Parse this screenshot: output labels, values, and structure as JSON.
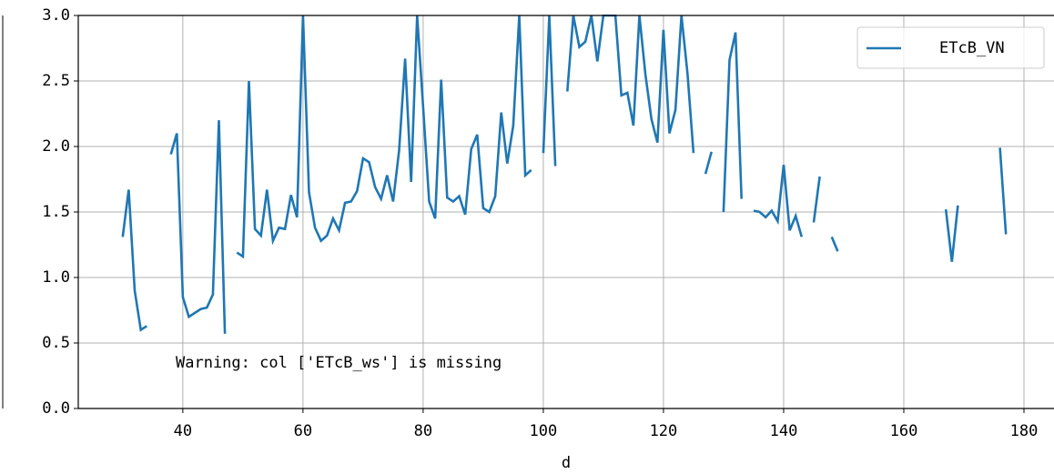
{
  "chart_data": {
    "type": "line",
    "x_label": "d",
    "annotation": "Warning: col ['ETcB_ws'] is missing",
    "legend_position": "upper right",
    "grid": true,
    "xlim": [
      22.6,
      185
    ],
    "ylim": [
      0,
      3
    ],
    "xticks": [
      40,
      60,
      80,
      100,
      120,
      140,
      160,
      180
    ],
    "yticks": [
      {
        "value": 0,
        "label": "0.0"
      },
      {
        "value": 0.5,
        "label": "0.5"
      },
      {
        "value": 1,
        "label": "1.0"
      },
      {
        "value": 1.5,
        "label": "1.5"
      },
      {
        "value": 2,
        "label": "2.0"
      },
      {
        "value": 2.5,
        "label": "2.5"
      },
      {
        "value": 3,
        "label": "3.0"
      }
    ],
    "x": [
      30,
      31,
      32,
      33,
      34,
      35,
      38,
      39,
      40,
      41,
      42,
      43,
      44,
      45,
      46,
      47,
      48,
      49,
      50,
      51,
      52,
      53,
      54,
      55,
      56,
      57,
      58,
      59,
      60,
      61,
      62,
      63,
      64,
      65,
      66,
      67,
      68,
      69,
      70,
      71,
      72,
      73,
      74,
      75,
      76,
      77,
      78,
      79,
      80,
      81,
      82,
      83,
      84,
      85,
      86,
      87,
      88,
      89,
      90,
      91,
      92,
      93,
      94,
      95,
      96,
      97,
      98,
      99,
      100,
      101,
      102,
      103,
      104,
      105,
      106,
      107,
      108,
      109,
      110,
      111,
      112,
      113,
      114,
      115,
      116,
      117,
      118,
      119,
      120,
      121,
      122,
      123,
      124,
      125,
      126,
      127,
      128,
      129,
      130,
      131,
      132,
      133,
      134,
      135,
      136,
      137,
      138,
      139,
      140,
      141,
      142,
      143,
      144,
      145,
      146,
      147,
      148,
      149,
      150,
      167,
      168,
      169,
      170,
      176,
      177
    ],
    "series": [
      {
        "name": "ETcB_VN",
        "color": "#1f77b4",
        "values": [
          1.31,
          1.67,
          0.9,
          0.6,
          0.63,
          null,
          1.94,
          2.1,
          0.85,
          0.7,
          0.73,
          0.76,
          0.77,
          0.87,
          2.2,
          0.57,
          null,
          1.19,
          1.16,
          2.5,
          1.37,
          1.32,
          1.67,
          1.28,
          1.38,
          1.37,
          1.63,
          1.46,
          3.0,
          1.65,
          1.38,
          1.28,
          1.32,
          1.45,
          1.36,
          1.57,
          1.58,
          1.66,
          1.91,
          1.88,
          1.69,
          1.6,
          1.78,
          1.58,
          1.97,
          2.67,
          1.73,
          3.0,
          2.3,
          1.58,
          1.45,
          2.51,
          1.61,
          1.58,
          1.62,
          1.48,
          1.98,
          2.09,
          1.53,
          1.5,
          1.62,
          2.26,
          1.87,
          2.16,
          3.0,
          1.78,
          1.82,
          null,
          1.95,
          3.0,
          1.85,
          null,
          2.42,
          3.0,
          2.76,
          2.8,
          3.0,
          2.65,
          3.0,
          3.0,
          3.0,
          2.39,
          2.41,
          2.16,
          3.0,
          2.55,
          2.21,
          2.03,
          2.89,
          2.1,
          2.28,
          3.0,
          2.56,
          1.95,
          null,
          1.79,
          1.96,
          null,
          1.5,
          2.66,
          2.87,
          1.6,
          null,
          1.51,
          1.5,
          1.46,
          1.51,
          1.43,
          1.86,
          1.36,
          1.47,
          1.31,
          null,
          1.42,
          1.77,
          null,
          1.31,
          1.2,
          null,
          1.52,
          1.12,
          1.55,
          null,
          1.99,
          1.33
        ]
      }
    ]
  }
}
